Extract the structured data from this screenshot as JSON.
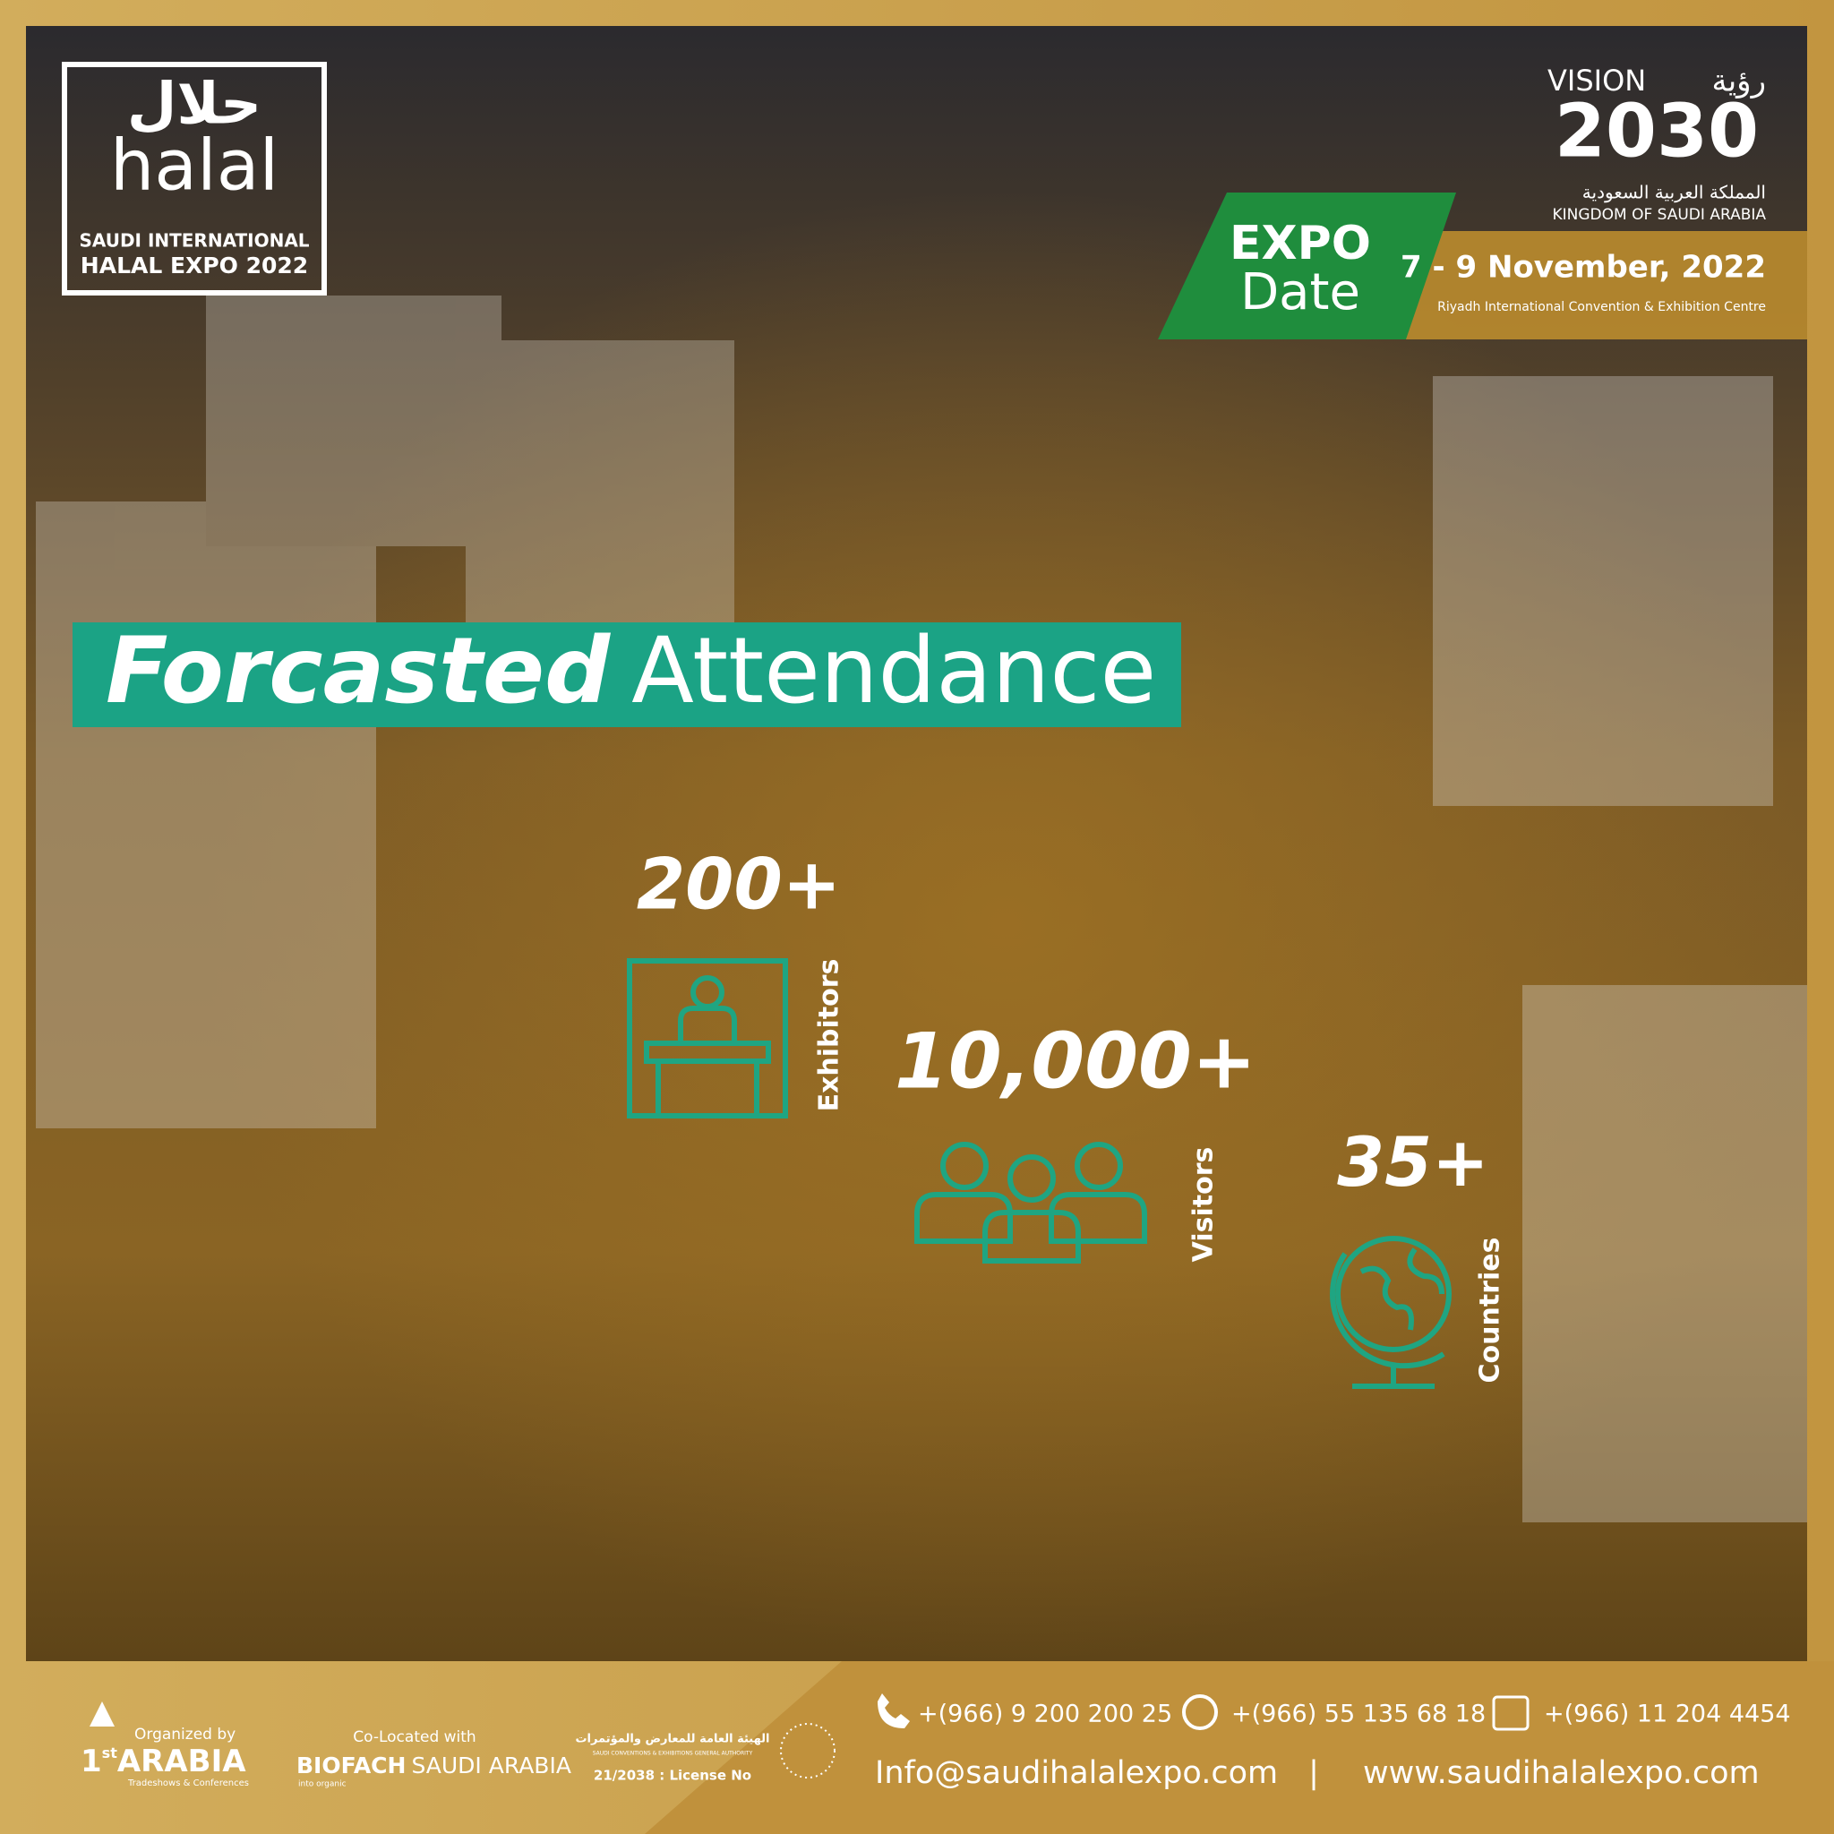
{
  "logo": {
    "arabic": "حلال",
    "latin": "halal",
    "line1": "SAUDI INTERNATIONAL",
    "line2": "HALAL EXPO 2022"
  },
  "vision": {
    "title": "VISION",
    "arabic_title": "رؤية",
    "year": "2030",
    "arabic_country": "المملكة العربية السعودية",
    "country": "KINGDOM OF SAUDI ARABIA"
  },
  "expo_badge": {
    "line1": "EXPO",
    "line2": "Date"
  },
  "date": "7 - 9 November, 2022",
  "venue": "Riyadh International Convention & Exhibition Centre",
  "heading": {
    "bold": "Forcasted",
    "light": "Attendance"
  },
  "stats": [
    {
      "value": "200+",
      "label": "Exhibitors"
    },
    {
      "value": "10,000+",
      "label": "Visitors"
    },
    {
      "value": "35+",
      "label": "Countries"
    }
  ],
  "footer": {
    "organizer": {
      "label": "Organized by",
      "number": "1",
      "suffix": "st",
      "name": "ARABIA",
      "tagline": "Tradeshows & Conferences"
    },
    "colocated": {
      "label": "Co-Located with",
      "brand": "BIOFACH",
      "region": "SAUDI ARABIA",
      "tagline": "into organic"
    },
    "authority": {
      "arabic": "الهيئة العامة للمعارض والمؤتمرات",
      "english": "SAUDI CONVENTIONS & EXHIBITIONS GENERAL AUTHORITY",
      "license": "21/2038 : License No"
    },
    "phone": "+(966) 9 200 200 25",
    "whatsapp": "+(966) 55 135 68 18",
    "fax": "+(966) 11 204 4454",
    "email": "Info@saudihalalexpo.com",
    "separator": "|",
    "website": "www.saudihalalexpo.com"
  }
}
